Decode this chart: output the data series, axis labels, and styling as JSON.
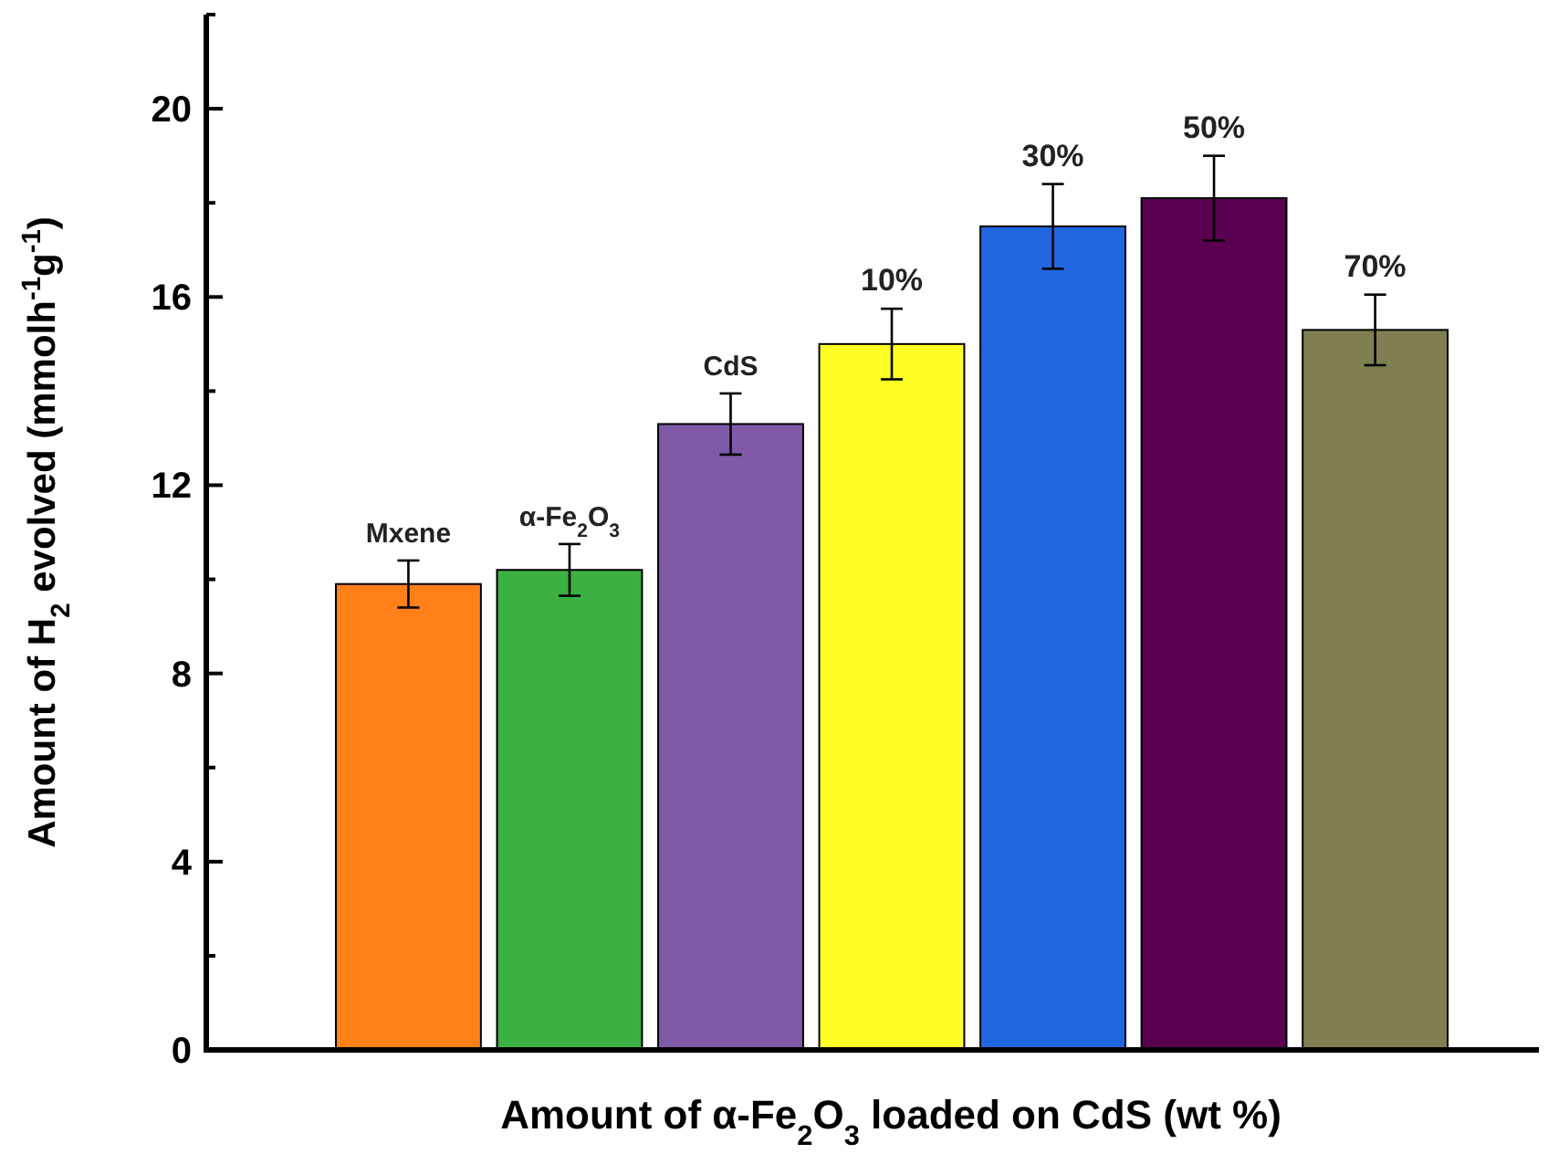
{
  "chart_data": {
    "type": "bar",
    "xlabel": "Amount of α-Fe$_{2}$O$_{3}$ loaded on CdS (wt %)",
    "ylabel": "Amount of H$_{2}$ evolved (mmolh$^{-1}$g$^{-1}$)",
    "categories": [
      "Mxene",
      "α-Fe$_{2}$O$_{3}$",
      "CdS",
      "10%",
      "30%",
      "50%",
      "70%"
    ],
    "values": [
      9.9,
      10.2,
      13.3,
      15.0,
      17.5,
      18.1,
      15.3
    ],
    "errors": [
      0.5,
      0.55,
      0.65,
      0.75,
      0.9,
      0.9,
      0.75
    ],
    "colors": [
      "#ff8019",
      "#3cb043",
      "#7f5aa8",
      "#ffff26",
      "#2266e0",
      "#5a0050",
      "#7f7f52"
    ],
    "ylim": [
      0,
      22
    ],
    "yticks": [
      0,
      {
        "value": 2,
        "label": null
      },
      4,
      {
        "value": 6,
        "label": null
      },
      8,
      {
        "value": 10,
        "label": null
      },
      12,
      {
        "value": 14,
        "label": null
      },
      16,
      {
        "value": 18,
        "label": null
      },
      20,
      {
        "value": 22,
        "label": null
      }
    ],
    "grid": false
  }
}
